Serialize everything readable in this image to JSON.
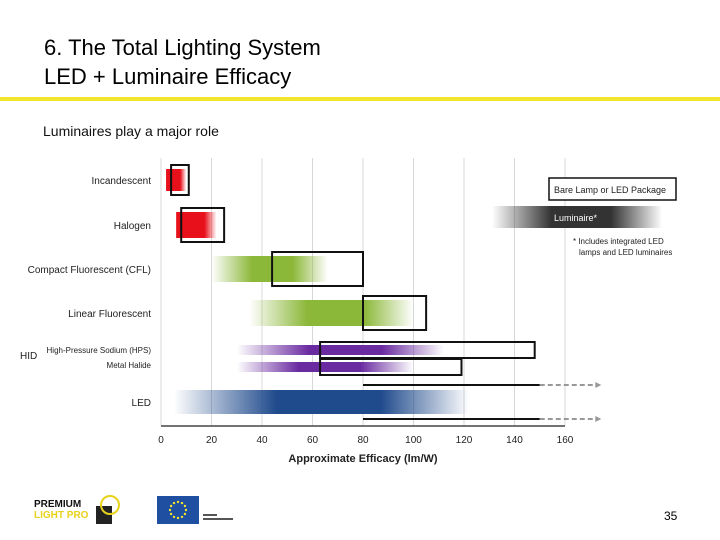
{
  "slide": {
    "title_line1": "6. The Total Lighting System",
    "title_line2": "LED + Luminaire Efficacy",
    "subtitle": "Luminaires play a major role",
    "page_number": "35"
  },
  "colors": {
    "accent_rule": "#f2e52e",
    "incandescent": "#e8101a",
    "halogen": "#e8101a",
    "fluorescent": "#8cb83a",
    "hid": "#6a2aa0",
    "led": "#1f4a8c",
    "luminaire_legend": "#333333"
  },
  "chart_data": {
    "type": "bar",
    "xlabel": "Approximate Efficacy (lm/W)",
    "xlim": [
      0,
      160
    ],
    "x_ticks": [
      0,
      20,
      40,
      60,
      80,
      100,
      120,
      140,
      160
    ],
    "grid": true,
    "legend_position": "top-right",
    "legend": {
      "bare": "Bare Lamp or LED Package",
      "luminaire": "Luminaire*",
      "note_line1": "* Includes integrated LED",
      "note_line2": "lamps and LED luminaires"
    },
    "group_label_hid": "HID",
    "categories": [
      "Incandescent",
      "Halogen",
      "Compact Fluorescent (CFL)",
      "Linear Fluorescent",
      "High-Pressure Sodium (HPS)",
      "Metal Halide",
      "LED"
    ],
    "series": [
      {
        "name": "Bare Lamp or LED Package",
        "ranges": [
          [
            4,
            11
          ],
          [
            8,
            25
          ],
          [
            44,
            80
          ],
          [
            80,
            105
          ],
          [
            63,
            148
          ],
          [
            63,
            119
          ],
          [
            80,
            150
          ]
        ]
      },
      {
        "name": "Luminaire*",
        "ranges": [
          [
            2,
            10
          ],
          [
            6,
            22
          ],
          [
            20,
            66
          ],
          [
            35,
            100
          ],
          [
            30,
            112
          ],
          [
            30,
            100
          ],
          [
            5,
            122
          ]
        ]
      }
    ],
    "led_projection": {
      "bare": [
        150,
        172
      ],
      "luminaire": [
        150,
        172
      ]
    }
  },
  "footer": {
    "logo_line1": "PREMIUM",
    "logo_line2": "LIGHT PRO"
  }
}
